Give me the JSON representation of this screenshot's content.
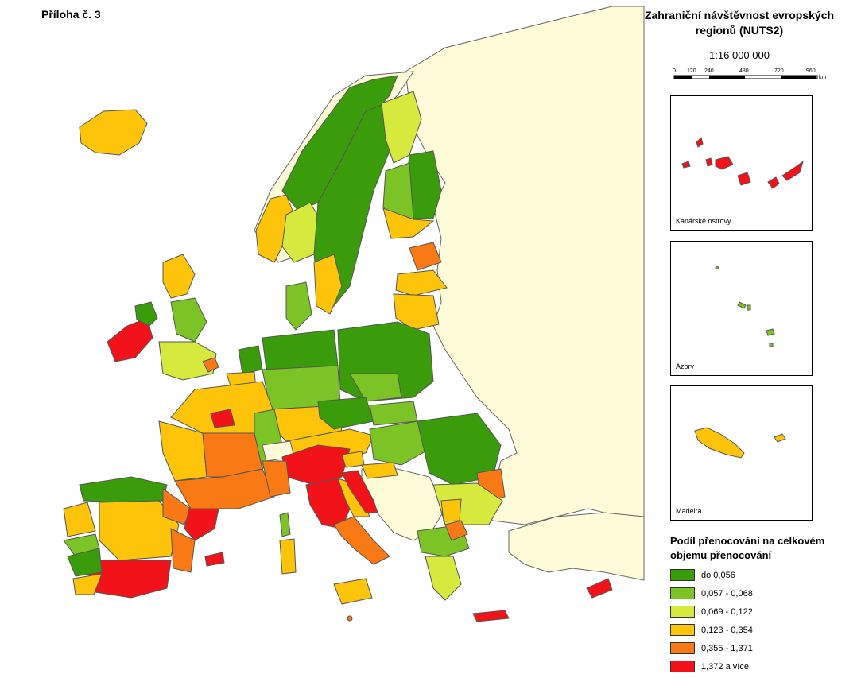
{
  "annex_label": "Příloha č. 3",
  "title_line1": "Zahraniční návštěvnost evropských",
  "title_line2": "regionů (NUTS2)",
  "scale": "1:16 000 000",
  "scalebar": {
    "ticks": [
      "0",
      "120",
      "240",
      "480",
      "720",
      "960"
    ],
    "unit": "km"
  },
  "insets": [
    {
      "label": "Kanárské ostrovy"
    },
    {
      "label": "Azory"
    },
    {
      "label": "Madeira"
    }
  ],
  "legend": {
    "title_line1": "Podíl přenocování na celkovém",
    "title_line2": "objemu přenocování",
    "classes": [
      {
        "label": "do 0,056",
        "color": "#3a9c0a"
      },
      {
        "label": "0,057 - 0,068",
        "color": "#7cc425"
      },
      {
        "label": "0,069 - 0,122",
        "color": "#d5ea3c"
      },
      {
        "label": "0,123 - 0,354",
        "color": "#fdc40a"
      },
      {
        "label": "0,355 - 1,371",
        "color": "#f97a15"
      },
      {
        "label": "1,372 a více",
        "color": "#f2121a"
      }
    ]
  },
  "colors": {
    "sea": "#ffffff",
    "non_eu": "#fefbd8",
    "border": "#555555"
  }
}
